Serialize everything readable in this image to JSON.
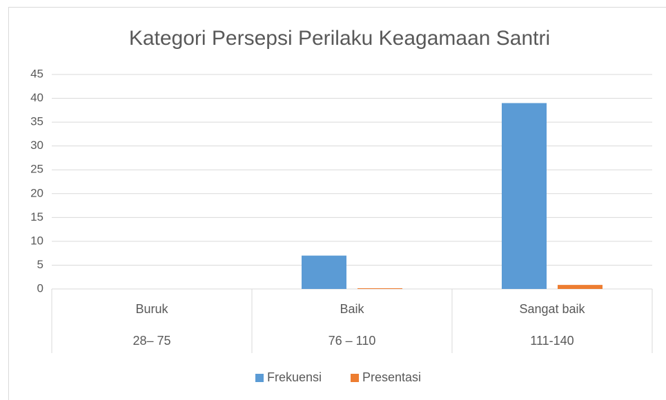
{
  "chart_data": {
    "type": "bar",
    "title": "Kategori Persepsi Perilaku Keagamaan Santri",
    "categories": [
      "Buruk",
      "Baik",
      "Sangat baik"
    ],
    "category_ranges": [
      "28– 75",
      "76 – 110",
      "111-140"
    ],
    "series": [
      {
        "name": "Frekuensi",
        "color": "#5b9bd5",
        "values": [
          0,
          7,
          39
        ]
      },
      {
        "name": "Presentasi",
        "color": "#ed7d31",
        "values": [
          0,
          0.15,
          0.85
        ]
      }
    ],
    "ylim": [
      0,
      45
    ],
    "yticks": [
      0,
      5,
      10,
      15,
      20,
      25,
      30,
      35,
      40,
      45
    ],
    "grid": true,
    "legend": "bottom"
  }
}
